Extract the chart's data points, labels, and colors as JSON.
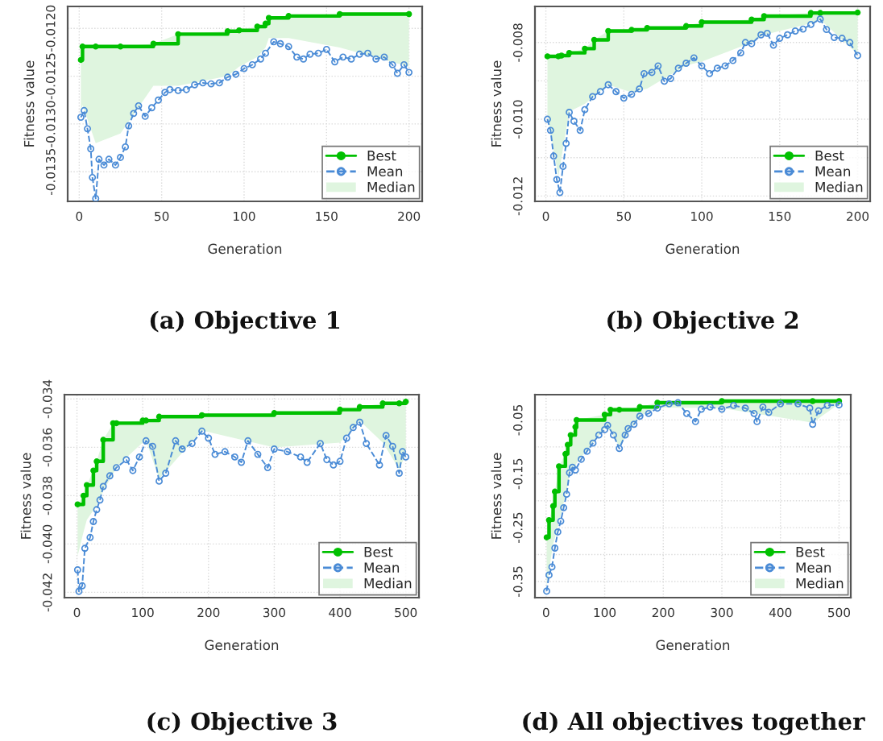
{
  "chart_data": [
    {
      "type": "line",
      "title": "(a) Objective 1",
      "xlabel": "Generation",
      "ylabel": "Fitness value",
      "xlim": [
        -7,
        208
      ],
      "ylim": [
        -0.01381,
        -0.01177
      ],
      "xticks": [
        0,
        50,
        100,
        150,
        200
      ],
      "yticks": [
        {
          "value": -0.012,
          "label": "-0.0120"
        },
        {
          "value": -0.0125,
          "label": "-0.0125"
        },
        {
          "value": -0.013,
          "label": "-0.0130"
        },
        {
          "value": -0.0135,
          "label": "-0.0135"
        }
      ],
      "grid": true,
      "legend": "bottom right",
      "x": [
        1,
        2,
        10,
        25,
        45,
        60,
        90,
        97,
        108,
        113,
        115,
        127,
        158,
        200
      ],
      "series": [
        {
          "name": "Best",
          "type": "step",
          "color": "#00c000",
          "marker": "circle",
          "line_style": "solid",
          "values": [
            -0.01233,
            -0.01219,
            -0.01219,
            -0.01219,
            -0.01216,
            -0.01206,
            -0.01203,
            -0.01202,
            -0.01198,
            -0.01195,
            -0.01189,
            -0.01187,
            -0.01185,
            -0.01185
          ]
        },
        {
          "name": "Mean",
          "color": "#4a8bd6",
          "marker": "circle",
          "line_style": "dashed",
          "x": [
            1,
            3,
            5,
            7,
            8,
            10,
            12,
            15,
            18,
            22,
            25,
            28,
            30,
            33,
            36,
            40,
            44,
            48,
            52,
            55,
            60,
            65,
            70,
            75,
            80,
            85,
            90,
            95,
            100,
            105,
            110,
            113,
            118,
            122,
            127,
            132,
            136,
            140,
            145,
            150,
            155,
            160,
            165,
            170,
            175,
            180,
            185,
            190,
            193,
            197,
            200
          ],
          "values": [
            -0.01293,
            -0.01286,
            -0.01305,
            -0.01326,
            -0.01356,
            -0.01378,
            -0.01337,
            -0.01343,
            -0.01337,
            -0.01343,
            -0.01335,
            -0.01324,
            -0.01302,
            -0.01289,
            -0.01281,
            -0.01292,
            -0.01283,
            -0.01275,
            -0.01267,
            -0.01264,
            -0.01265,
            -0.01264,
            -0.01259,
            -0.01257,
            -0.01258,
            -0.01257,
            -0.01251,
            -0.01248,
            -0.01242,
            -0.01238,
            -0.01232,
            -0.01226,
            -0.01214,
            -0.01216,
            -0.01219,
            -0.0123,
            -0.01232,
            -0.01227,
            -0.01226,
            -0.01222,
            -0.01235,
            -0.0123,
            -0.01232,
            -0.01227,
            -0.01226,
            -0.01232,
            -0.0123,
            -0.01238,
            -0.01247,
            -0.01238,
            -0.01246
          ]
        },
        {
          "name": "Median",
          "type": "area",
          "color": "#dff5df",
          "values": [
            -0.0129,
            -0.0128,
            -0.0132,
            -0.0131,
            -0.0126,
            -0.0126,
            -0.0125,
            -0.0124,
            -0.0123,
            -0.0122,
            -0.0121,
            -0.0121,
            -0.0122,
            -0.0124
          ]
        }
      ]
    },
    {
      "type": "line",
      "title": "(b) Objective 2",
      "xlabel": "Generation",
      "ylabel": "Fitness value",
      "xlim": [
        -7,
        208
      ],
      "ylim": [
        -0.01214,
        -0.00706
      ],
      "xticks": [
        0,
        50,
        100,
        150,
        200
      ],
      "yticks": [
        {
          "value": -0.008,
          "label": "-0.008"
        },
        {
          "value": -0.009,
          "label": null
        },
        {
          "value": -0.01,
          "label": "-0.010"
        },
        {
          "value": -0.011,
          "label": null
        },
        {
          "value": -0.012,
          "label": "-0.012"
        }
      ],
      "grid": true,
      "legend": "bottom right",
      "x": [
        1,
        8,
        10,
        15,
        25,
        31,
        40,
        55,
        65,
        90,
        100,
        132,
        140,
        170,
        176,
        200
      ],
      "series": [
        {
          "name": "Best",
          "type": "step",
          "color": "#00c000",
          "marker": "circle",
          "line_style": "solid",
          "values": [
            -0.00836,
            -0.00836,
            -0.00834,
            -0.00827,
            -0.00816,
            -0.00793,
            -0.0077,
            -0.00767,
            -0.00762,
            -0.00757,
            -0.00747,
            -0.0074,
            -0.00731,
            -0.00723,
            -0.00723,
            -0.00722
          ]
        },
        {
          "name": "Mean",
          "color": "#4a8bd6",
          "marker": "circle",
          "line_style": "dashed",
          "x": [
            1,
            3,
            5,
            7,
            9,
            11,
            13,
            15,
            18,
            22,
            25,
            30,
            35,
            40,
            45,
            50,
            55,
            60,
            63,
            68,
            72,
            76,
            80,
            85,
            90,
            95,
            100,
            105,
            110,
            115,
            120,
            125,
            128,
            132,
            138,
            142,
            146,
            150,
            155,
            160,
            165,
            170,
            176,
            180,
            185,
            190,
            195,
            200
          ],
          "values": [
            -0.01,
            -0.01029,
            -0.01096,
            -0.01157,
            -0.01191,
            -0.01123,
            -0.01063,
            -0.00982,
            -0.01005,
            -0.01029,
            -0.00975,
            -0.00941,
            -0.00928,
            -0.0091,
            -0.00928,
            -0.00945,
            -0.00935,
            -0.00921,
            -0.00881,
            -0.00878,
            -0.00861,
            -0.00901,
            -0.00894,
            -0.00867,
            -0.00854,
            -0.0084,
            -0.00861,
            -0.00881,
            -0.00867,
            -0.00861,
            -0.00847,
            -0.00827,
            -0.008,
            -0.00803,
            -0.0078,
            -0.00776,
            -0.00807,
            -0.00789,
            -0.0078,
            -0.0077,
            -0.00765,
            -0.00753,
            -0.00739,
            -0.00766,
            -0.00787,
            -0.00789,
            -0.008,
            -0.00834
          ]
        },
        {
          "name": "Median",
          "type": "area",
          "color": "#dff5df",
          "values": [
            -0.0099,
            -0.0115,
            -0.011,
            -0.0098,
            -0.0096,
            -0.0094,
            -0.0091,
            -0.0093,
            -0.0092,
            -0.0086,
            -0.0085,
            -0.008,
            -0.0078,
            -0.0075,
            -0.0074,
            -0.0083
          ]
        }
      ]
    },
    {
      "type": "line",
      "title": "(c) Objective 3",
      "xlabel": "Generation",
      "ylabel": "Fitness value",
      "xlim": [
        -19,
        520
      ],
      "ylim": [
        -0.04222,
        -0.03382
      ],
      "xticks": [
        0,
        100,
        200,
        300,
        400,
        500
      ],
      "yticks": [
        {
          "value": -0.034,
          "label": "-0.034"
        },
        {
          "value": -0.036,
          "label": "-0.036"
        },
        {
          "value": -0.038,
          "label": "-0.038"
        },
        {
          "value": -0.04,
          "label": "-0.040"
        },
        {
          "value": -0.042,
          "label": "-0.042"
        }
      ],
      "grid": true,
      "legend": "bottom right",
      "x": [
        1,
        10,
        15,
        25,
        30,
        40,
        55,
        60,
        100,
        105,
        125,
        190,
        300,
        400,
        430,
        465,
        490,
        500
      ],
      "series": [
        {
          "name": "Best",
          "type": "step",
          "color": "#00c000",
          "marker": "circle",
          "line_style": "solid",
          "values": [
            -0.03836,
            -0.038,
            -0.03756,
            -0.03696,
            -0.03658,
            -0.03569,
            -0.035,
            -0.035,
            -0.03489,
            -0.03489,
            -0.03473,
            -0.03467,
            -0.03458,
            -0.03444,
            -0.03433,
            -0.03418,
            -0.03418,
            -0.03411
          ]
        },
        {
          "name": "Mean",
          "color": "#4a8bd6",
          "marker": "circle",
          "line_style": "dashed",
          "x": [
            1,
            3,
            8,
            12,
            20,
            25,
            30,
            35,
            40,
            50,
            60,
            75,
            85,
            95,
            105,
            115,
            125,
            135,
            150,
            160,
            175,
            190,
            200,
            210,
            225,
            240,
            250,
            260,
            275,
            290,
            300,
            320,
            340,
            350,
            370,
            380,
            390,
            400,
            410,
            420,
            430,
            440,
            460,
            470,
            480,
            490,
            495,
            500
          ],
          "values": [
            -0.04107,
            -0.04196,
            -0.04173,
            -0.04018,
            -0.03973,
            -0.03907,
            -0.03858,
            -0.03818,
            -0.03762,
            -0.03718,
            -0.03684,
            -0.03651,
            -0.03696,
            -0.0364,
            -0.03573,
            -0.03596,
            -0.0374,
            -0.03707,
            -0.03573,
            -0.03607,
            -0.03584,
            -0.03533,
            -0.03562,
            -0.03629,
            -0.03618,
            -0.0364,
            -0.03662,
            -0.03573,
            -0.03629,
            -0.03684,
            -0.03607,
            -0.03618,
            -0.0364,
            -0.03662,
            -0.03584,
            -0.03651,
            -0.03673,
            -0.03658,
            -0.03562,
            -0.03518,
            -0.03496,
            -0.03584,
            -0.03673,
            -0.03551,
            -0.03596,
            -0.03707,
            -0.03618,
            -0.0364
          ]
        },
        {
          "name": "Median",
          "type": "area",
          "color": "#dff5df",
          "values": [
            -0.0405,
            -0.0395,
            -0.039,
            -0.0386,
            -0.0384,
            -0.0378,
            -0.0371,
            -0.0368,
            -0.0358,
            -0.0357,
            -0.0373,
            -0.0353,
            -0.036,
            -0.0358,
            -0.0349,
            -0.0358,
            -0.0369,
            -0.0363
          ]
        }
      ]
    },
    {
      "type": "line",
      "title": "(d) All objectives together",
      "xlabel": "Generation",
      "ylabel": "Fitness value",
      "xlim": [
        -19,
        520
      ],
      "ylim": [
        -0.38,
        -0.003
      ],
      "xticks": [
        0,
        100,
        200,
        300,
        400,
        500
      ],
      "yticks": [
        {
          "value": -0.05,
          "label": "-0.05"
        },
        {
          "value": -0.1,
          "label": null
        },
        {
          "value": -0.15,
          "label": "-0.15"
        },
        {
          "value": -0.2,
          "label": null
        },
        {
          "value": -0.25,
          "label": "-0.25"
        },
        {
          "value": -0.3,
          "label": null
        },
        {
          "value": -0.35,
          "label": "-0.35"
        }
      ],
      "grid": true,
      "legend": "bottom right",
      "x": [
        1,
        5,
        12,
        15,
        22,
        33,
        37,
        42,
        50,
        52,
        100,
        110,
        125,
        160,
        190,
        300,
        455,
        500
      ],
      "series": [
        {
          "name": "Best",
          "type": "step",
          "color": "#00c000",
          "marker": "circle",
          "line_style": "solid",
          "values": [
            -0.268,
            -0.236,
            -0.21,
            -0.183,
            -0.136,
            -0.113,
            -0.096,
            -0.078,
            -0.063,
            -0.05,
            -0.04,
            -0.031,
            -0.031,
            -0.026,
            -0.018,
            -0.015,
            -0.015,
            -0.015
          ]
        },
        {
          "name": "Mean",
          "color": "#4a8bd6",
          "marker": "circle",
          "line_style": "dashed",
          "x": [
            1,
            5,
            10,
            15,
            20,
            25,
            30,
            35,
            40,
            45,
            50,
            60,
            70,
            80,
            90,
            100,
            105,
            115,
            125,
            135,
            140,
            150,
            160,
            175,
            190,
            210,
            225,
            240,
            255,
            265,
            280,
            300,
            320,
            340,
            355,
            360,
            370,
            380,
            400,
            430,
            450,
            455,
            465,
            480,
            500
          ],
          "values": [
            -0.368,
            -0.338,
            -0.323,
            -0.288,
            -0.258,
            -0.238,
            -0.213,
            -0.188,
            -0.148,
            -0.138,
            -0.143,
            -0.123,
            -0.108,
            -0.093,
            -0.078,
            -0.068,
            -0.06,
            -0.078,
            -0.103,
            -0.078,
            -0.066,
            -0.058,
            -0.043,
            -0.038,
            -0.028,
            -0.02,
            -0.018,
            -0.038,
            -0.053,
            -0.03,
            -0.026,
            -0.03,
            -0.023,
            -0.028,
            -0.038,
            -0.053,
            -0.026,
            -0.036,
            -0.02,
            -0.02,
            -0.028,
            -0.058,
            -0.033,
            -0.023,
            -0.022
          ]
        },
        {
          "name": "Median",
          "type": "area",
          "color": "#dff5df",
          "values": [
            -0.36,
            -0.33,
            -0.28,
            -0.27,
            -0.24,
            -0.19,
            -0.17,
            -0.14,
            -0.135,
            -0.13,
            -0.066,
            -0.07,
            -0.1,
            -0.043,
            -0.027,
            -0.028,
            -0.055,
            -0.02
          ]
        }
      ]
    }
  ]
}
